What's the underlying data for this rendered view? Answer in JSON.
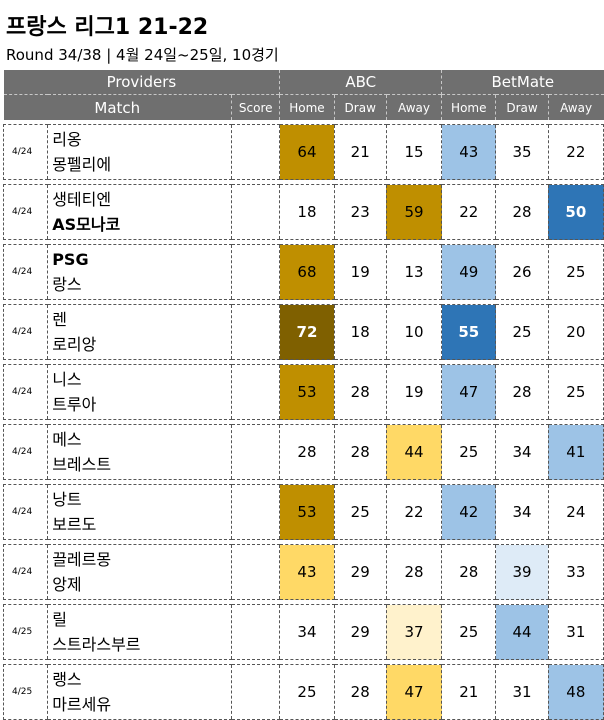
{
  "title": "프랑스 리그1 21-22",
  "subtitle": "Round 34/38 | 4월 24일~25일, 10경기",
  "header": {
    "providers": "Providers",
    "match": "Match",
    "score": "Score",
    "provider_names": [
      "ABC",
      "BetMate"
    ],
    "columns": [
      "Home",
      "Draw",
      "Away",
      "Home",
      "Draw",
      "Away"
    ]
  },
  "colors": {
    "header_bg": "#6f6f6f",
    "abc_strong": "#bf8f00",
    "abc_darkest": "#7f6000",
    "abc_light": "#ffd966",
    "abc_lightest": "#fff2cc",
    "bm_strong": "#2e75b6",
    "bm_medium": "#9dc3e6",
    "bm_lightest": "#deebf7"
  },
  "matches": [
    {
      "date": "4/24",
      "home": "리옹",
      "away": "몽펠리에",
      "home_bold": false,
      "away_bold": false,
      "abc": [
        64,
        21,
        15
      ],
      "bm": [
        43,
        35,
        22
      ],
      "abc_fill": [
        "#bf8f00",
        "",
        ""
      ],
      "bm_fill": [
        "#9dc3e6",
        "",
        ""
      ],
      "abc_text": [
        "",
        "",
        ""
      ],
      "bm_text": [
        "",
        "",
        ""
      ]
    },
    {
      "date": "4/24",
      "home": "생테티엔",
      "away": "AS모나코",
      "home_bold": false,
      "away_bold": true,
      "abc": [
        18,
        23,
        59
      ],
      "bm": [
        22,
        28,
        50
      ],
      "abc_fill": [
        "",
        "",
        "#bf8f00"
      ],
      "bm_fill": [
        "",
        "",
        "#2e75b6"
      ],
      "abc_text": [
        "",
        "",
        ""
      ],
      "bm_text": [
        "",
        "",
        "#ffffff"
      ]
    },
    {
      "date": "4/24",
      "home": "PSG",
      "away": "랑스",
      "home_bold": true,
      "away_bold": false,
      "abc": [
        68,
        19,
        13
      ],
      "bm": [
        49,
        26,
        25
      ],
      "abc_fill": [
        "#bf8f00",
        "",
        ""
      ],
      "bm_fill": [
        "#9dc3e6",
        "",
        ""
      ],
      "abc_text": [
        "",
        "",
        ""
      ],
      "bm_text": [
        "",
        "",
        ""
      ]
    },
    {
      "date": "4/24",
      "home": "렌",
      "away": "로리앙",
      "home_bold": false,
      "away_bold": false,
      "abc": [
        72,
        18,
        10
      ],
      "bm": [
        55,
        25,
        20
      ],
      "abc_fill": [
        "#7f6000",
        "",
        ""
      ],
      "bm_fill": [
        "#2e75b6",
        "",
        ""
      ],
      "abc_text": [
        "#ffffff",
        "",
        ""
      ],
      "bm_text": [
        "#ffffff",
        "",
        ""
      ]
    },
    {
      "date": "4/24",
      "home": "니스",
      "away": "트루아",
      "home_bold": false,
      "away_bold": false,
      "abc": [
        53,
        28,
        19
      ],
      "bm": [
        47,
        28,
        25
      ],
      "abc_fill": [
        "#bf8f00",
        "",
        ""
      ],
      "bm_fill": [
        "#9dc3e6",
        "",
        ""
      ],
      "abc_text": [
        "",
        "",
        ""
      ],
      "bm_text": [
        "",
        "",
        ""
      ]
    },
    {
      "date": "4/24",
      "home": "메스",
      "away": "브레스트",
      "home_bold": false,
      "away_bold": false,
      "abc": [
        28,
        28,
        44
      ],
      "bm": [
        25,
        34,
        41
      ],
      "abc_fill": [
        "",
        "",
        "#ffd966"
      ],
      "bm_fill": [
        "",
        "",
        "#9dc3e6"
      ],
      "abc_text": [
        "",
        "",
        ""
      ],
      "bm_text": [
        "",
        "",
        ""
      ]
    },
    {
      "date": "4/24",
      "home": "낭트",
      "away": "보르도",
      "home_bold": false,
      "away_bold": false,
      "abc": [
        53,
        25,
        22
      ],
      "bm": [
        42,
        34,
        24
      ],
      "abc_fill": [
        "#bf8f00",
        "",
        ""
      ],
      "bm_fill": [
        "#9dc3e6",
        "",
        ""
      ],
      "abc_text": [
        "",
        "",
        ""
      ],
      "bm_text": [
        "",
        "",
        ""
      ]
    },
    {
      "date": "4/24",
      "home": "끌레르몽",
      "away": "앙제",
      "home_bold": false,
      "away_bold": false,
      "abc": [
        43,
        29,
        28
      ],
      "bm": [
        28,
        39,
        33
      ],
      "abc_fill": [
        "#ffd966",
        "",
        ""
      ],
      "bm_fill": [
        "",
        "#deebf7",
        ""
      ],
      "abc_text": [
        "",
        "",
        ""
      ],
      "bm_text": [
        "",
        "",
        ""
      ]
    },
    {
      "date": "4/25",
      "home": "릴",
      "away": "스트라스부르",
      "home_bold": false,
      "away_bold": false,
      "abc": [
        34,
        29,
        37
      ],
      "bm": [
        25,
        44,
        31
      ],
      "abc_fill": [
        "",
        "",
        "#fff2cc"
      ],
      "bm_fill": [
        "",
        "#9dc3e6",
        ""
      ],
      "abc_text": [
        "",
        "",
        ""
      ],
      "bm_text": [
        "",
        "",
        ""
      ]
    },
    {
      "date": "4/25",
      "home": "랭스",
      "away": "마르세유",
      "home_bold": false,
      "away_bold": false,
      "abc": [
        25,
        28,
        47
      ],
      "bm": [
        21,
        31,
        48
      ],
      "abc_fill": [
        "",
        "",
        "#ffd966"
      ],
      "bm_fill": [
        "",
        "",
        "#9dc3e6"
      ],
      "abc_text": [
        "",
        "",
        ""
      ],
      "bm_text": [
        "",
        "",
        ""
      ]
    }
  ]
}
